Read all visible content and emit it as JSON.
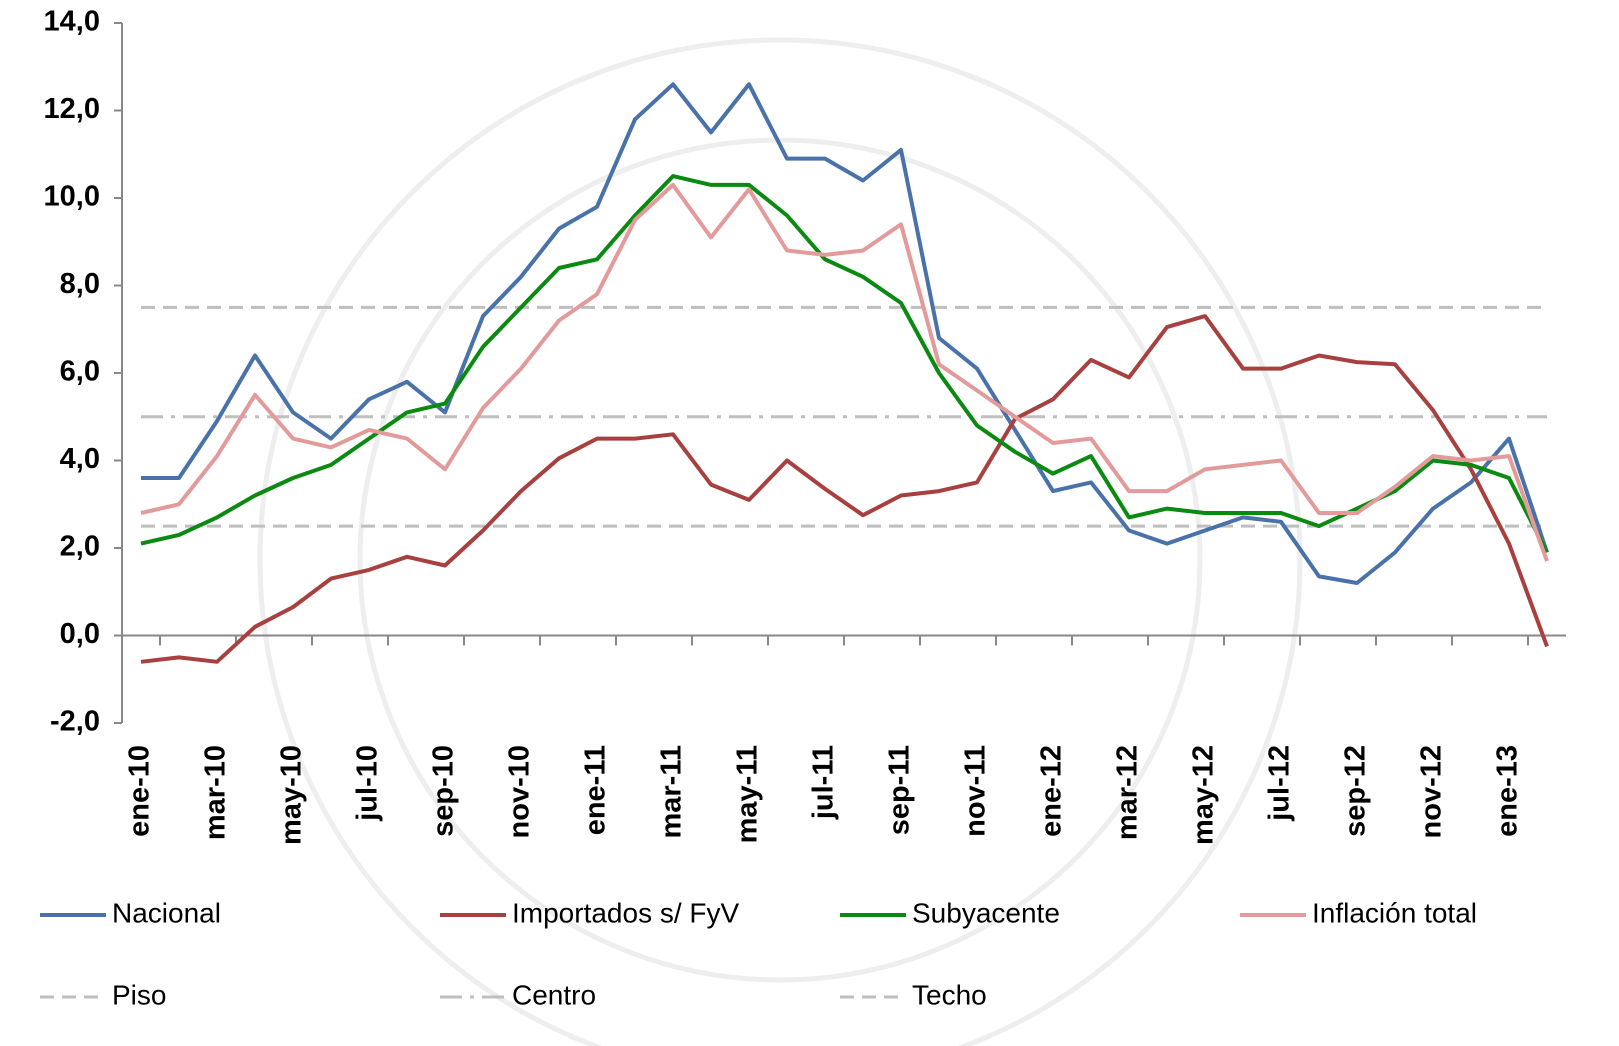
{
  "chart_data": {
    "type": "line",
    "categories": [
      "ene-10",
      null,
      "mar-10",
      null,
      "may-10",
      null,
      "jul-10",
      null,
      "sep-10",
      null,
      "nov-10",
      null,
      "ene-11",
      null,
      "mar-11",
      null,
      "may-11",
      null,
      "jul-11",
      null,
      "sep-11",
      null,
      "nov-11",
      null,
      "ene-12",
      null,
      "mar-12",
      null,
      "may-12",
      null,
      "jul-12",
      null,
      "sep-12",
      null,
      "nov-12",
      null,
      "ene-13",
      null
    ],
    "series": [
      {
        "name": "Nacional",
        "color": "#4a72aa",
        "values": [
          3.6,
          3.6,
          4.9,
          6.4,
          5.1,
          4.5,
          5.4,
          5.8,
          5.1,
          7.3,
          8.2,
          9.3,
          9.8,
          11.8,
          12.6,
          11.5,
          12.6,
          10.9,
          10.9,
          10.4,
          11.1,
          6.8,
          6.1,
          4.7,
          3.3,
          3.5,
          2.4,
          2.1,
          2.4,
          2.7,
          2.6,
          1.35,
          1.2,
          1.9,
          2.9,
          3.5,
          4.5,
          1.9
        ]
      },
      {
        "name": "Importados s/ FyV",
        "color": "#a84040",
        "values": [
          -0.6,
          -0.5,
          -0.6,
          0.2,
          0.65,
          1.3,
          1.5,
          1.8,
          1.6,
          2.4,
          3.3,
          4.05,
          4.5,
          4.5,
          4.6,
          3.45,
          3.1,
          4.0,
          3.35,
          2.75,
          3.2,
          3.3,
          3.5,
          4.95,
          5.4,
          6.3,
          5.9,
          7.05,
          7.3,
          6.1,
          6.1,
          6.4,
          6.25,
          6.2,
          5.15,
          3.8,
          2.1,
          -0.25
        ]
      },
      {
        "name": "Subyacente",
        "color": "#0a8a10",
        "values": [
          2.1,
          2.3,
          2.7,
          3.2,
          3.6,
          3.9,
          4.5,
          5.1,
          5.3,
          6.6,
          7.5,
          8.4,
          8.6,
          9.6,
          10.5,
          10.3,
          10.3,
          9.6,
          8.6,
          8.2,
          7.6,
          6.0,
          4.8,
          4.2,
          3.7,
          4.1,
          2.7,
          2.9,
          2.8,
          2.8,
          2.8,
          2.5,
          2.9,
          3.3,
          4.0,
          3.9,
          3.6,
          1.9
        ]
      },
      {
        "name": "Inflación total",
        "color": "#e39a9a",
        "values": [
          2.8,
          3.0,
          4.1,
          5.5,
          4.5,
          4.3,
          4.7,
          4.5,
          3.8,
          5.2,
          6.1,
          7.2,
          7.8,
          9.5,
          10.3,
          9.1,
          10.2,
          8.8,
          8.7,
          8.8,
          9.4,
          6.2,
          5.6,
          5.0,
          4.4,
          4.5,
          3.3,
          3.3,
          3.8,
          3.9,
          4.0,
          2.8,
          2.8,
          3.4,
          4.1,
          4.0,
          4.1,
          1.7
        ]
      },
      {
        "name": "Piso",
        "color": "#bfbfbf",
        "dash": "dash",
        "values": [
          2.5,
          2.5,
          2.5,
          2.5,
          2.5,
          2.5,
          2.5,
          2.5,
          2.5,
          2.5,
          2.5,
          2.5,
          2.5,
          2.5,
          2.5,
          2.5,
          2.5,
          2.5,
          2.5,
          2.5,
          2.5,
          2.5,
          2.5,
          2.5,
          2.5,
          2.5,
          2.5,
          2.5,
          2.5,
          2.5,
          2.5,
          2.5,
          2.5,
          2.5,
          2.5,
          2.5,
          2.5,
          2.5
        ]
      },
      {
        "name": "Centro",
        "color": "#bfbfbf",
        "dash": "dashdot",
        "values": [
          5,
          5,
          5,
          5,
          5,
          5,
          5,
          5,
          5,
          5,
          5,
          5,
          5,
          5,
          5,
          5,
          5,
          5,
          5,
          5,
          5,
          5,
          5,
          5,
          5,
          5,
          5,
          5,
          5,
          5,
          5,
          5,
          5,
          5,
          5,
          5,
          5,
          5
        ]
      },
      {
        "name": "Techo",
        "color": "#bfbfbf",
        "dash": "dash",
        "values": [
          7.5,
          7.5,
          7.5,
          7.5,
          7.5,
          7.5,
          7.5,
          7.5,
          7.5,
          7.5,
          7.5,
          7.5,
          7.5,
          7.5,
          7.5,
          7.5,
          7.5,
          7.5,
          7.5,
          7.5,
          7.5,
          7.5,
          7.5,
          7.5,
          7.5,
          7.5,
          7.5,
          7.5,
          7.5,
          7.5,
          7.5,
          7.5,
          7.5,
          7.5,
          7.5,
          7.5,
          7.5,
          7.5
        ]
      }
    ],
    "ylim": [
      -2,
      14
    ],
    "yticks": [
      {
        "value": -2,
        "label": "-2,0"
      },
      {
        "value": 0,
        "label": "0,0"
      },
      {
        "value": 2,
        "label": "2,0"
      },
      {
        "value": 4,
        "label": "4,0"
      },
      {
        "value": 6,
        "label": "6,0"
      },
      {
        "value": 8,
        "label": "8,0"
      },
      {
        "value": 10,
        "label": "10,0"
      },
      {
        "value": 12,
        "label": "12,0"
      },
      {
        "value": 14,
        "label": "14,0"
      }
    ],
    "grid": false,
    "legend": "bottom"
  }
}
